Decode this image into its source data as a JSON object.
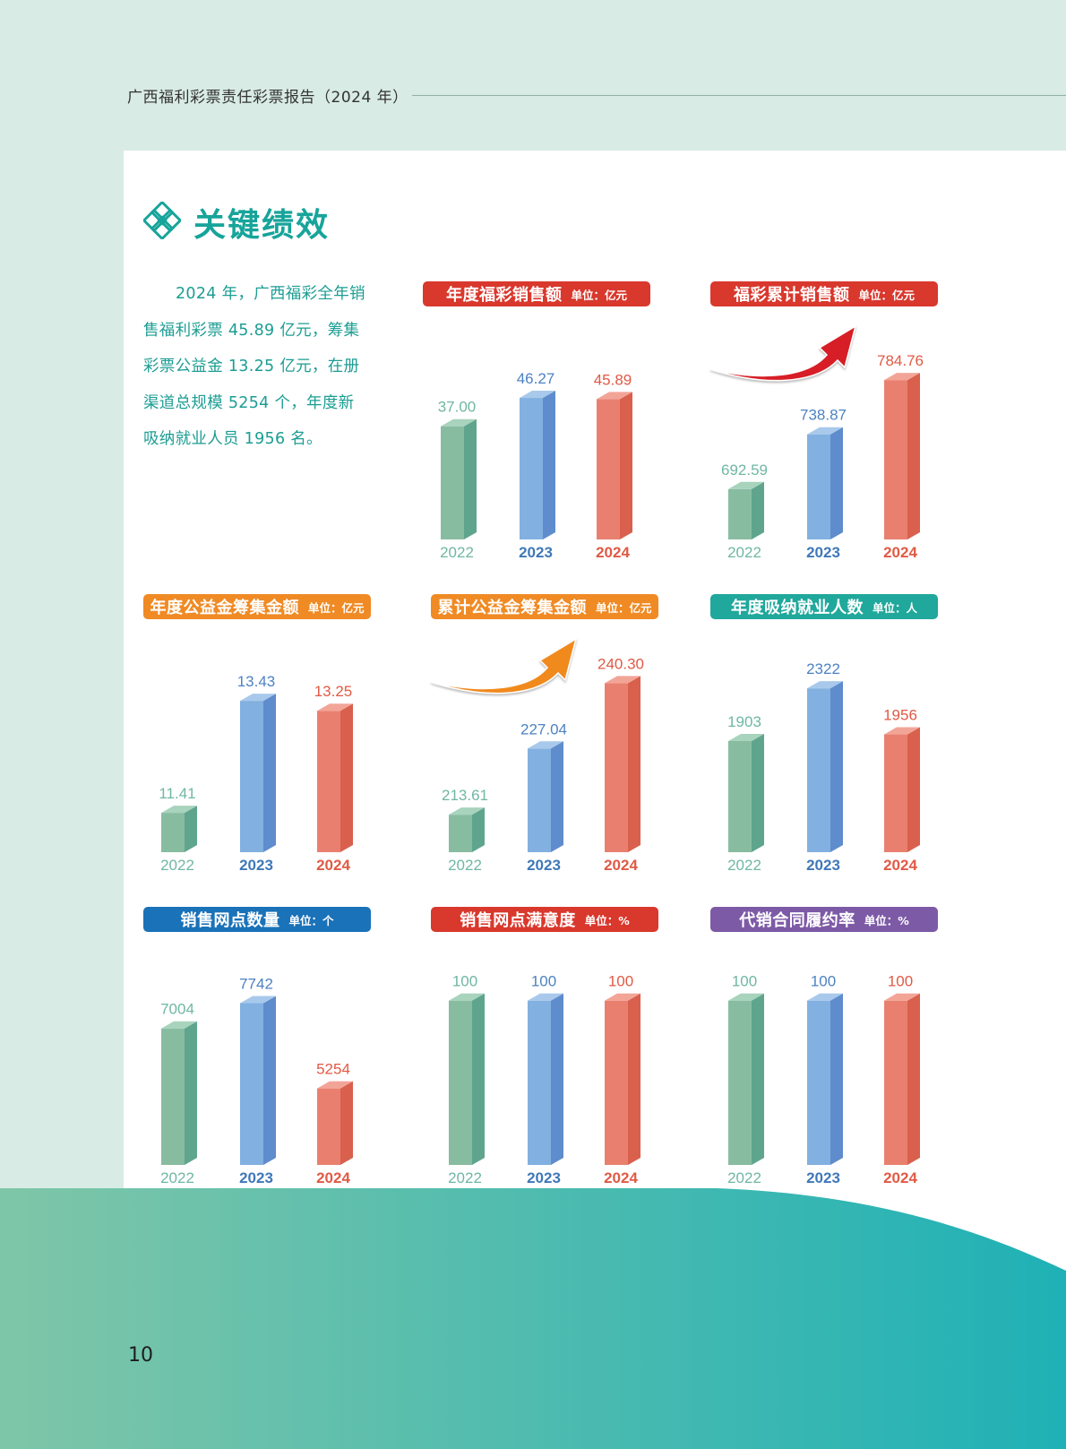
{
  "header": {
    "title": "广西福利彩票责任彩票报告（2024 年）"
  },
  "section": {
    "title": "关键绩效",
    "icon": "knot-icon"
  },
  "intro": {
    "text": "2024 年，广西福彩全年销售福利彩票 45.89 亿元，筹集彩票公益金 13.25 亿元，在册渠道总规模 5254 个，年度新吸纳就业人员 1956 名。"
  },
  "page": {
    "number": "10"
  },
  "colors": {
    "green": "#7fbd9f",
    "blue": "#7ba9dc",
    "red": "#ea7665",
    "accent": "#17a49a"
  },
  "chart_data": [
    {
      "type": "bar",
      "title": "年度福彩销售额",
      "unit": "单位：亿元",
      "header_color": "#d9382d",
      "categories": [
        "2022",
        "2023",
        "2024"
      ],
      "values": [
        37.0,
        46.27,
        45.89
      ],
      "labels": [
        "37.00",
        "46.27",
        "45.89"
      ],
      "ylim": [
        0,
        58
      ],
      "arrow": false
    },
    {
      "type": "bar",
      "title": "福彩累计销售额",
      "unit": "单位：亿元",
      "header_color": "#d9382d",
      "categories": [
        "2022",
        "2023",
        "2024"
      ],
      "values": [
        692.59,
        738.87,
        784.76
      ],
      "labels": [
        "692.59",
        "738.87",
        "784.76"
      ],
      "ylim": [
        650,
        800
      ],
      "arrow": true,
      "arrow_color": "#d71e26"
    },
    {
      "type": "bar",
      "title": "年度公益金筹集金额",
      "unit": "单位：亿元",
      "header_color": "#f08a24",
      "categories": [
        "2022",
        "2023",
        "2024"
      ],
      "values": [
        11.41,
        13.43,
        13.25
      ],
      "labels": [
        "11.41",
        "13.43",
        "13.25"
      ],
      "ylim": [
        10.7,
        13.9
      ],
      "arrow": false
    },
    {
      "type": "bar",
      "title": "累计公益金筹集金额",
      "unit": "单位：亿元",
      "header_color": "#f08a24",
      "categories": [
        "2022",
        "2023",
        "2024"
      ],
      "values": [
        213.61,
        227.04,
        240.3
      ],
      "labels": [
        "213.61",
        "227.04",
        "240.30"
      ],
      "ylim": [
        206,
        242
      ],
      "arrow": true,
      "arrow_color": "#f08a1d"
    },
    {
      "type": "bar",
      "title": "年度吸纳就业人数",
      "unit": "单位：人",
      "header_color": "#1fa89b",
      "categories": [
        "2022",
        "2023",
        "2024"
      ],
      "values": [
        1903,
        2322,
        1956
      ],
      "labels": [
        "1903",
        "2322",
        "1956"
      ],
      "ylim": [
        1020,
        2430
      ],
      "arrow": false
    },
    {
      "type": "bar",
      "title": "销售网点数量",
      "unit": "单位：个",
      "header_color": "#1a72b8",
      "categories": [
        "2022",
        "2023",
        "2024"
      ],
      "values": [
        7004,
        7742,
        5254
      ],
      "labels": [
        "7004",
        "7742",
        "5254"
      ],
      "ylim": [
        3020,
        8200
      ],
      "arrow": false
    },
    {
      "type": "bar",
      "title": "销售网点满意度",
      "unit": "单位：%",
      "header_color": "#d9382d",
      "categories": [
        "2022",
        "2023",
        "2024"
      ],
      "values": [
        100,
        100,
        100
      ],
      "labels": [
        "100",
        "100",
        "100"
      ],
      "ylim": [
        0,
        108
      ],
      "arrow": false
    },
    {
      "type": "bar",
      "title": "代销合同履约率",
      "unit": "单位：%",
      "header_color": "#7d5aa6",
      "categories": [
        "2022",
        "2023",
        "2024"
      ],
      "values": [
        100,
        100,
        100
      ],
      "labels": [
        "100",
        "100",
        "100"
      ],
      "ylim": [
        0,
        108
      ],
      "arrow": false
    }
  ]
}
